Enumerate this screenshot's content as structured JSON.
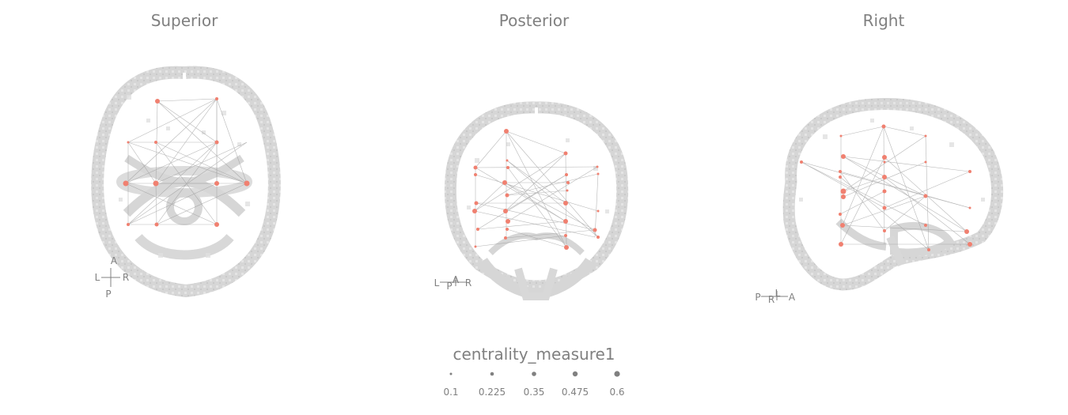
{
  "panels": [
    {
      "title": "Superior",
      "orientation": {
        "top": "A",
        "left": "L",
        "right": "R",
        "bottom": "P"
      }
    },
    {
      "title": "Posterior",
      "orientation": {
        "left": "L",
        "mid_top": "A",
        "mid_bottom": "P",
        "right": "R"
      }
    },
    {
      "title": "Right",
      "orientation": {
        "left": "P",
        "mid_top": "L",
        "mid_bottom": "R",
        "right": "A"
      }
    }
  ],
  "legend": {
    "title": "centrality_measure1",
    "values": [
      "0.1",
      "0.225",
      "0.35",
      "0.475",
      "0.6"
    ]
  },
  "colors": {
    "node": "#f08070",
    "edge": "#999999",
    "brain": "#d3d3d3",
    "text": "#808080"
  },
  "icons": [
    "orientation-cross-icon"
  ]
}
